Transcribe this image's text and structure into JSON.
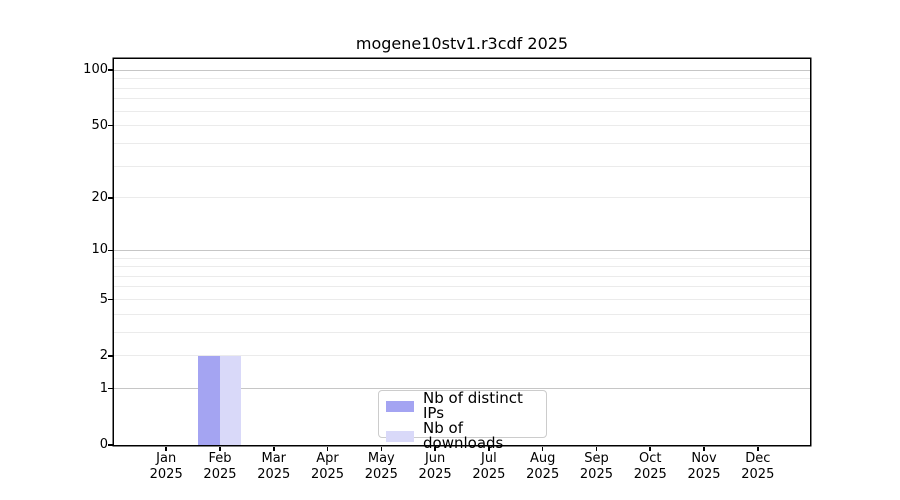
{
  "chart_data": {
    "type": "bar",
    "title": "mogene10stv1.r3cdf 2025",
    "categories": [
      "Jan",
      "Feb",
      "Mar",
      "Apr",
      "May",
      "Jun",
      "Jul",
      "Aug",
      "Sep",
      "Oct",
      "Nov",
      "Dec"
    ],
    "x_year_label": "2025",
    "series": [
      {
        "name": "Nb of distinct IPs",
        "color": "#a4a4f2",
        "values": [
          0,
          2,
          0,
          0,
          0,
          0,
          0,
          0,
          0,
          0,
          0,
          0
        ]
      },
      {
        "name": "Nb of downloads",
        "color": "#d9d9f9",
        "values": [
          0,
          2,
          0,
          0,
          0,
          0,
          0,
          0,
          0,
          0,
          0,
          0
        ]
      }
    ],
    "y_axis": {
      "scale": "log1p",
      "labeled_ticks": [
        0,
        1,
        2,
        5,
        10,
        20,
        50,
        100
      ],
      "major_gridlines": [
        1,
        10,
        100
      ],
      "minor_gridlines": [
        2,
        3,
        4,
        5,
        6,
        7,
        8,
        9,
        20,
        30,
        40,
        50,
        60,
        70,
        80,
        90
      ],
      "ylim": [
        0,
        115
      ]
    },
    "grid": true,
    "legend_position": "bottom-center"
  },
  "colors": {
    "background": "#ffffff",
    "spine": "#000000",
    "major_grid": "#c6c6c6",
    "minor_grid": "#ebebeb",
    "legend_border": "#cccccc",
    "bar_distinct_ips": "#a4a4f2",
    "bar_downloads": "#d9d9f9"
  }
}
